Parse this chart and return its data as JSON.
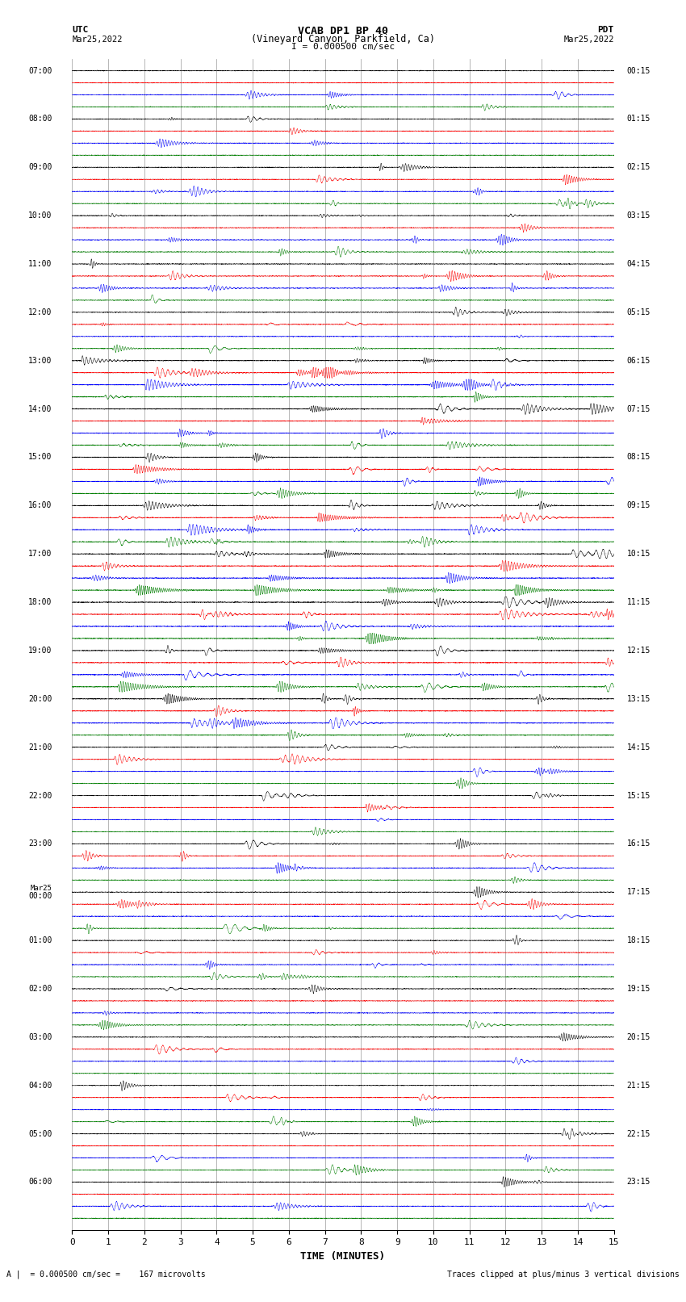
{
  "title_line1": "VCAB DP1 BP 40",
  "title_line2": "(Vineyard Canyon, Parkfield, Ca)",
  "scale_label": "I = 0.000500 cm/sec",
  "xlabel": "TIME (MINUTES)",
  "footer_left": "A |  = 0.000500 cm/sec =    167 microvolts",
  "footer_right": "Traces clipped at plus/minus 3 vertical divisions",
  "background_color": "#ffffff",
  "grid_color": "#808080",
  "trace_colors": [
    "black",
    "red",
    "blue",
    "green"
  ],
  "x_min": 0,
  "x_max": 15,
  "x_ticks": [
    0,
    1,
    2,
    3,
    4,
    5,
    6,
    7,
    8,
    9,
    10,
    11,
    12,
    13,
    14,
    15
  ],
  "n_hours": 24,
  "n_traces_per_hour": 4,
  "figwidth": 8.5,
  "figheight": 16.13,
  "dpi": 100,
  "hour_labels_utc": [
    "07:00",
    "08:00",
    "09:00",
    "10:00",
    "11:00",
    "12:00",
    "13:00",
    "14:00",
    "15:00",
    "16:00",
    "17:00",
    "18:00",
    "19:00",
    "20:00",
    "21:00",
    "22:00",
    "23:00",
    "Mar25\n00:00",
    "01:00",
    "02:00",
    "03:00",
    "04:00",
    "05:00",
    "06:00"
  ],
  "hour_labels_pdt": [
    "00:15",
    "01:15",
    "02:15",
    "03:15",
    "04:15",
    "05:15",
    "06:15",
    "07:15",
    "08:15",
    "09:15",
    "10:15",
    "11:15",
    "12:15",
    "13:15",
    "14:15",
    "15:15",
    "16:15",
    "17:15",
    "18:15",
    "19:15",
    "20:15",
    "21:15",
    "22:15",
    "23:15"
  ]
}
